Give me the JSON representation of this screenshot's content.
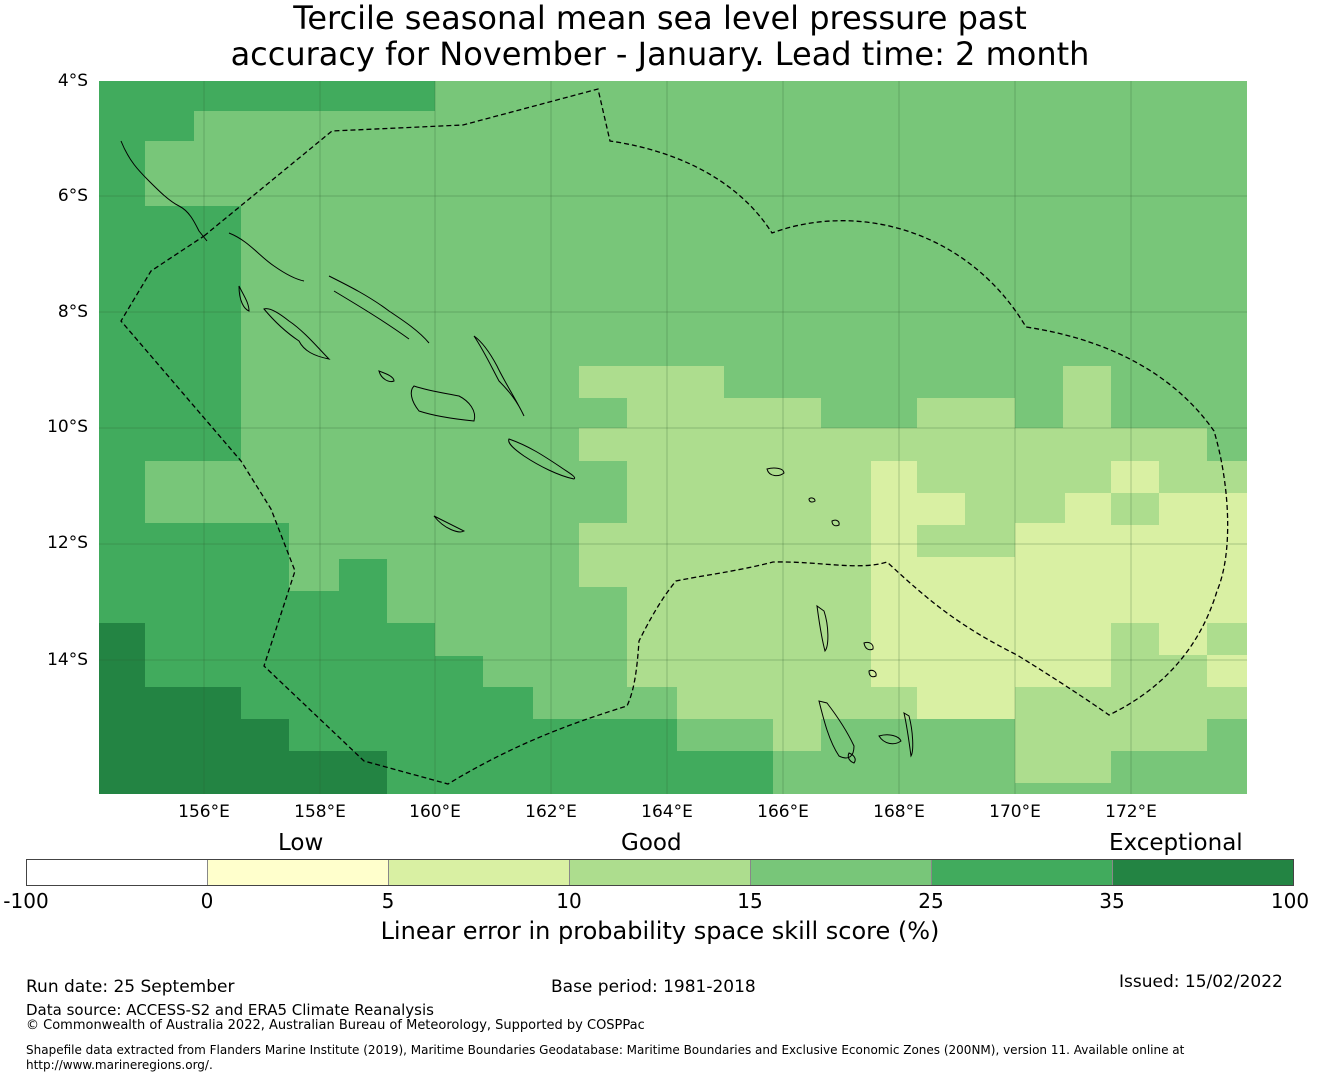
{
  "title": {
    "line1": "Tercile seasonal mean sea level pressure past",
    "line2": "accuracy for November - January. Lead time: 2 month"
  },
  "map": {
    "lat_labels": [
      "4°S",
      "6°S",
      "8°S",
      "10°S",
      "12°S",
      "14°S"
    ],
    "lon_labels": [
      "156°E",
      "158°E",
      "160°E",
      "162°E",
      "164°E",
      "166°E",
      "168°E",
      "170°E",
      "172°E"
    ],
    "lat_range": [
      -16.3,
      -4.0
    ],
    "lon_range": [
      154.2,
      174.0
    ],
    "grid": "on",
    "features": [
      "skill-score-raster",
      "eez-boundary-dashed",
      "coastlines"
    ]
  },
  "colorbar": {
    "categories": [
      "Low",
      "Good",
      "Exceptional"
    ],
    "ticks": [
      "-100",
      "0",
      "5",
      "10",
      "15",
      "25",
      "35",
      "100"
    ],
    "colors": [
      "#ffffff",
      "#ffffcc",
      "#d9f0a3",
      "#addd8e",
      "#78c679",
      "#41ab5d",
      "#238443"
    ],
    "label": "Linear error in probability space skill score (%)"
  },
  "footer": {
    "run_date": "Run date: 25 September",
    "base_period": "Base period: 1981-2018",
    "issued": "Issued: 15/02/2022",
    "data_source": "Data source: ACCESS-S2 and ERA5 Climate Reanalysis",
    "copyright": "© Commonwealth of Australia 2022, Australian Bureau of Meteorology, Supported by COSPPac",
    "shapefile_line1": "Shapefile data extracted from Flanders Marine Institute (2019), Maritime Boundaries Geodatabase: Maritime Boundaries and Exclusive Economic Zones (200NM), version 11. Available online at",
    "shapefile_line2": "http://www.marineregions.org/."
  }
}
